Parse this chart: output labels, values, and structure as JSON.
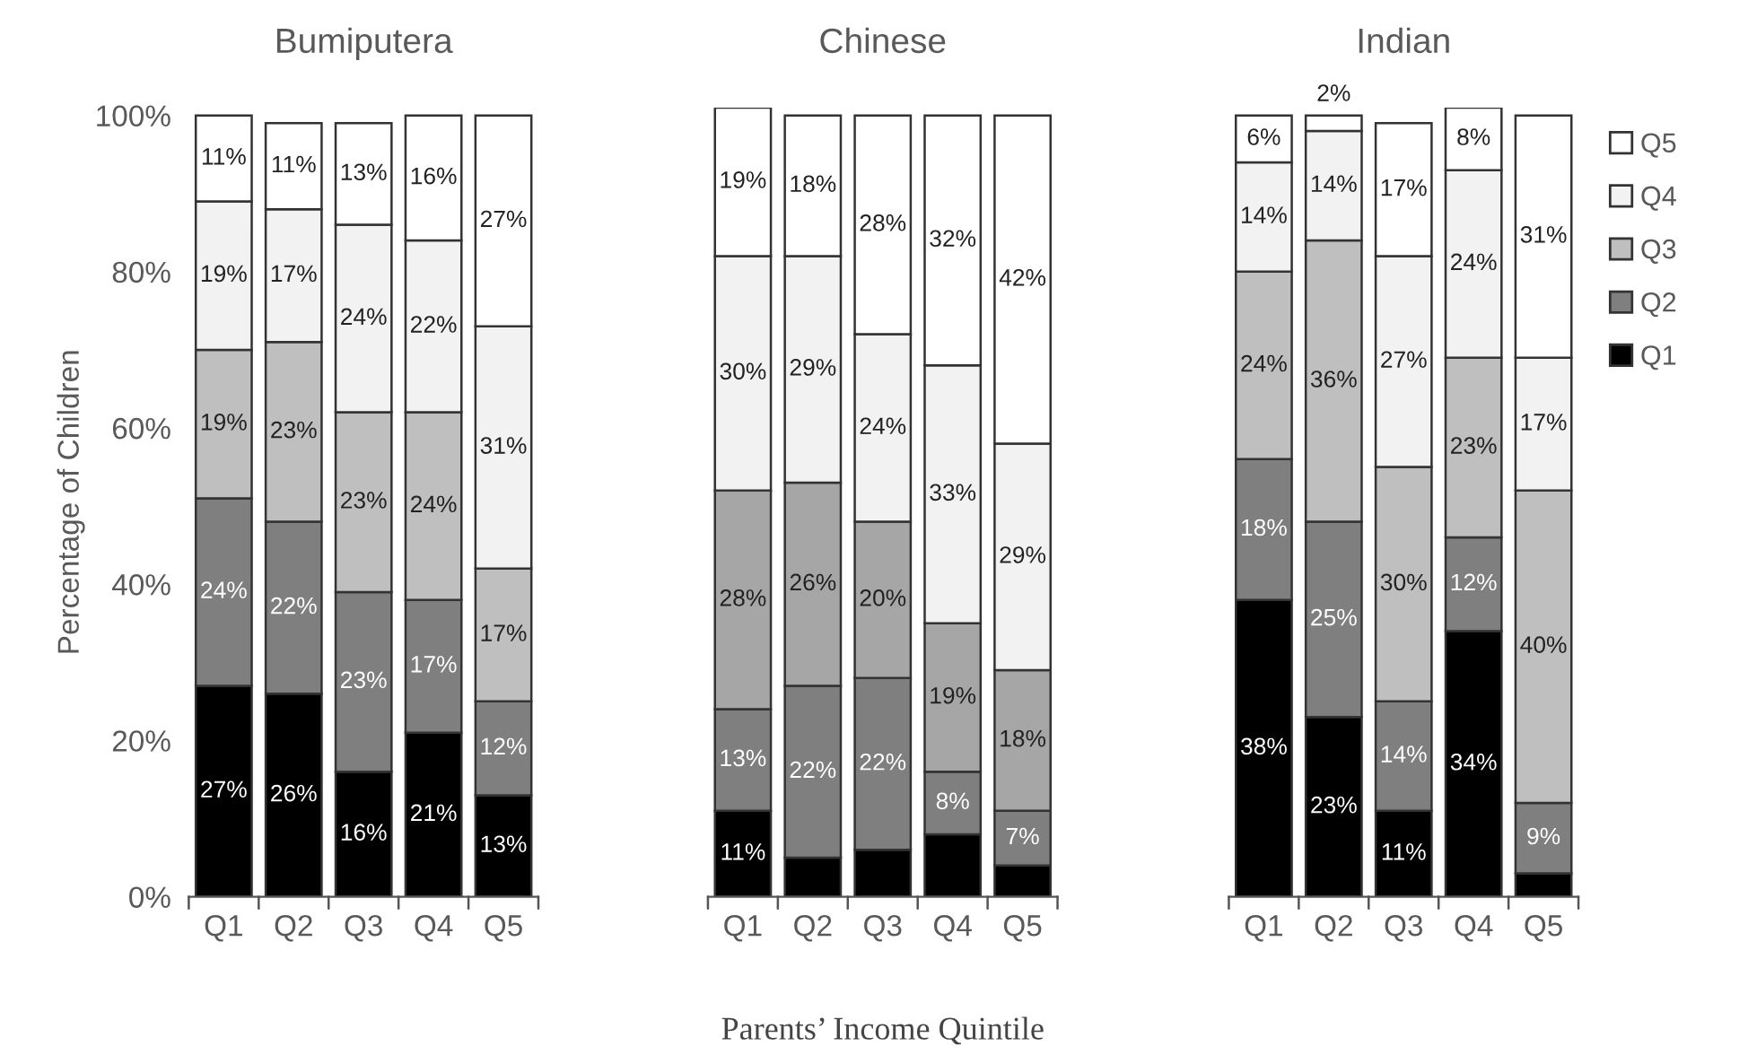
{
  "chart_data": [
    {
      "type": "bar",
      "title": "Bumiputera",
      "ylabel": "Percentage of Children",
      "categories": [
        "Q1",
        "Q2",
        "Q3",
        "Q4",
        "Q5"
      ],
      "stacked": true,
      "ylim": [
        0,
        101
      ],
      "yticks": [
        {
          "value": 0,
          "label": "0%"
        },
        {
          "value": 20,
          "label": "20%"
        },
        {
          "value": 40,
          "label": "40%"
        },
        {
          "value": 60,
          "label": "60%"
        },
        {
          "value": 80,
          "label": "80%"
        },
        {
          "value": 100,
          "label": "100%"
        }
      ],
      "grid": false,
      "legend": false,
      "series": [
        {
          "color": "#000000",
          "values": [
            27,
            26,
            16,
            21,
            13
          ],
          "value_labels": [
            "27%",
            "26%",
            "16%",
            "21%",
            "13%"
          ]
        },
        {
          "color": "#7f7f7f",
          "values": [
            24,
            22,
            23,
            17,
            12
          ],
          "value_labels": [
            "24%",
            "22%",
            "23%",
            "17%",
            "12%"
          ]
        },
        {
          "color": "#bfbfbf",
          "values": [
            19,
            23,
            23,
            24,
            17
          ],
          "value_labels": [
            "19%",
            "23%",
            "23%",
            "24%",
            "17%"
          ]
        },
        {
          "color": "#f2f2f2",
          "values": [
            19,
            17,
            24,
            22,
            31
          ],
          "value_labels": [
            "19%",
            "17%",
            "24%",
            "22%",
            "31%"
          ]
        },
        {
          "color": "#ffffff",
          "values": [
            11,
            11,
            13,
            16,
            27
          ],
          "value_labels": [
            "11%",
            "11%",
            "13%",
            "16%",
            "27%"
          ]
        }
      ]
    },
    {
      "type": "bar",
      "title": "Chinese",
      "xlabel": "Parents’ Income Quintile",
      "categories": [
        "Q1",
        "Q2",
        "Q3",
        "Q4",
        "Q5"
      ],
      "stacked": true,
      "ylim": [
        0,
        101
      ],
      "tick_labels": "x",
      "grid": false,
      "legend": false,
      "series": [
        {
          "color": "#000000",
          "values": [
            11,
            5,
            6,
            8,
            4
          ],
          "value_labels": [
            "11%",
            null,
            null,
            null,
            null
          ]
        },
        {
          "color": "#7f7f7f",
          "values": [
            13,
            22,
            22,
            8,
            7
          ],
          "value_labels": [
            "13%",
            "22%",
            "22%",
            "8%",
            "7%"
          ]
        },
        {
          "color": "#a6a6a6",
          "values": [
            28,
            26,
            20,
            19,
            18
          ],
          "value_labels": [
            "28%",
            "26%",
            "20%",
            "19%",
            "18%"
          ]
        },
        {
          "color": "#f2f2f2",
          "values": [
            30,
            29,
            24,
            33,
            29
          ],
          "value_labels": [
            "30%",
            "29%",
            "24%",
            "33%",
            "29%"
          ]
        },
        {
          "color": "#ffffff",
          "values": [
            19,
            18,
            28,
            32,
            42
          ],
          "value_labels": [
            "19%",
            "18%",
            "28%",
            "32%",
            "42%"
          ]
        }
      ]
    },
    {
      "type": "bar",
      "title": "Indian",
      "categories": [
        "Q1",
        "Q2",
        "Q3",
        "Q4",
        "Q5"
      ],
      "stacked": true,
      "ylim": [
        0,
        101
      ],
      "tick_labels": "x",
      "grid": false,
      "legend": "right",
      "series": [
        {
          "name": "Q1",
          "color": "#000000",
          "values": [
            38,
            23,
            11,
            34,
            3
          ],
          "value_labels": [
            "38%",
            "23%",
            "11%",
            "34%",
            null
          ]
        },
        {
          "name": "Q2",
          "color": "#7f7f7f",
          "values": [
            18,
            25,
            14,
            12,
            9
          ],
          "value_labels": [
            "18%",
            "25%",
            "14%",
            "12%",
            "9%"
          ]
        },
        {
          "name": "Q3",
          "color": "#bfbfbf",
          "values": [
            24,
            36,
            30,
            23,
            40
          ],
          "value_labels": [
            "24%",
            "36%",
            "30%",
            "23%",
            "40%"
          ]
        },
        {
          "name": "Q4",
          "color": "#f2f2f2",
          "values": [
            14,
            14,
            27,
            24,
            17
          ],
          "value_labels": [
            "14%",
            "14%",
            "27%",
            "24%",
            "17%"
          ]
        },
        {
          "name": "Q5",
          "color": "#ffffff",
          "values": [
            6,
            2,
            17,
            8,
            31
          ],
          "value_labels": [
            "6%",
            "2%",
            "17%",
            "8%",
            "31%"
          ]
        }
      ]
    }
  ]
}
